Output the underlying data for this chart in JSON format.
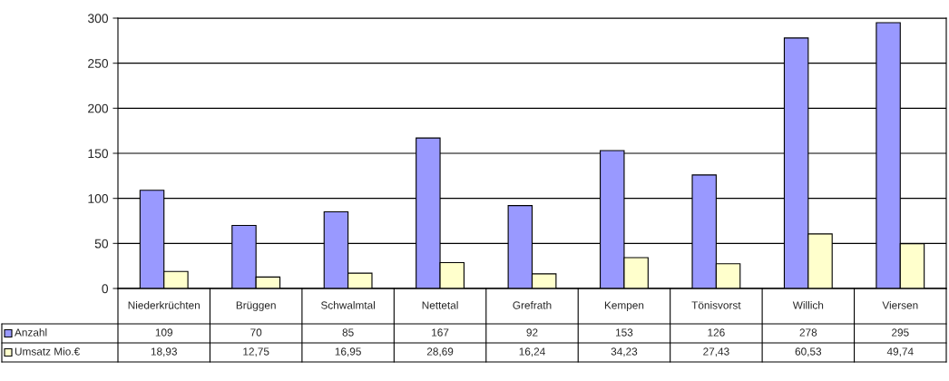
{
  "chart_data": {
    "type": "bar",
    "categories": [
      "Niederkrüchten",
      "Brüggen",
      "Schwalmtal",
      "Nettetal",
      "Grefrath",
      "Kempen",
      "Tönisvorst",
      "Willich",
      "Viersen"
    ],
    "series": [
      {
        "name": "Anzahl",
        "color": "#9999ff",
        "values": [
          109,
          70,
          85,
          167,
          92,
          153,
          126,
          278,
          295
        ],
        "value_labels": [
          "109",
          "70",
          "85",
          "167",
          "92",
          "153",
          "126",
          "278",
          "295"
        ]
      },
      {
        "name": "Umsatz Mio.€",
        "color": "#ffffcc",
        "values": [
          18.93,
          12.75,
          16.95,
          28.69,
          16.24,
          34.23,
          27.43,
          60.53,
          49.74
        ],
        "value_labels": [
          "18,93",
          "12,75",
          "16,95",
          "28,69",
          "16,24",
          "34,23",
          "27,43",
          "60,53",
          "49,74"
        ]
      }
    ],
    "ylim": [
      0,
      300
    ],
    "yticks": [
      0,
      50,
      100,
      150,
      200,
      250,
      300
    ],
    "grid": "y",
    "legend": "bottom left"
  }
}
